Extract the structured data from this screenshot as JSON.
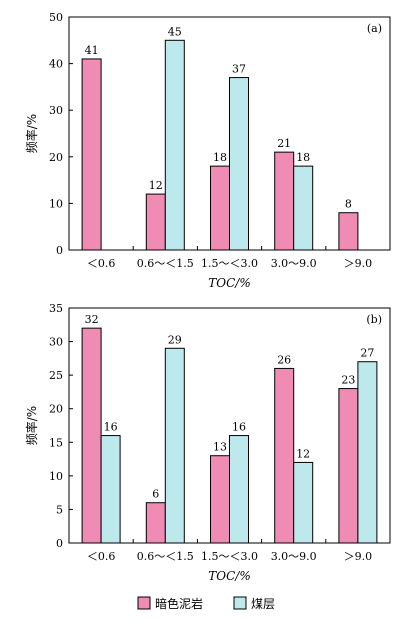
{
  "chart_data": [
    {
      "type": "bar",
      "panel_label": "(a)",
      "categories": [
        "＜0.6",
        "0.6～＜1.5",
        "1.5～＜3.0",
        "3.0～9.0",
        "＞9.0"
      ],
      "series": [
        {
          "name": "暗色泥岩",
          "values": [
            41,
            12,
            18,
            21,
            8
          ],
          "color": "#f08cb4"
        },
        {
          "name": "煤层",
          "values": [
            null,
            45,
            37,
            18,
            null
          ],
          "color": "#bde8ec"
        }
      ],
      "ylim": [
        0,
        50
      ],
      "yticks": [
        0,
        10,
        20,
        30,
        40,
        50
      ],
      "xlabel": "TOC/%",
      "ylabel": "频率/%"
    },
    {
      "type": "bar",
      "panel_label": "(b)",
      "categories": [
        "＜0.6",
        "0.6～＜1.5",
        "1.5～＜3.0",
        "3.0～9.0",
        "＞9.0"
      ],
      "series": [
        {
          "name": "暗色泥岩",
          "values": [
            32,
            6,
            13,
            26,
            23
          ],
          "color": "#f08cb4"
        },
        {
          "name": "煤层",
          "values": [
            16,
            29,
            16,
            12,
            27
          ],
          "color": "#bde8ec"
        }
      ],
      "ylim": [
        0,
        35
      ],
      "yticks": [
        0,
        5,
        10,
        15,
        20,
        25,
        30,
        35
      ],
      "xlabel": "TOC/%",
      "ylabel": "频率/%"
    }
  ],
  "legend": {
    "items": [
      {
        "label": "暗色泥岩",
        "color": "#f08cb4"
      },
      {
        "label": "煤层",
        "color": "#bde8ec"
      }
    ]
  }
}
